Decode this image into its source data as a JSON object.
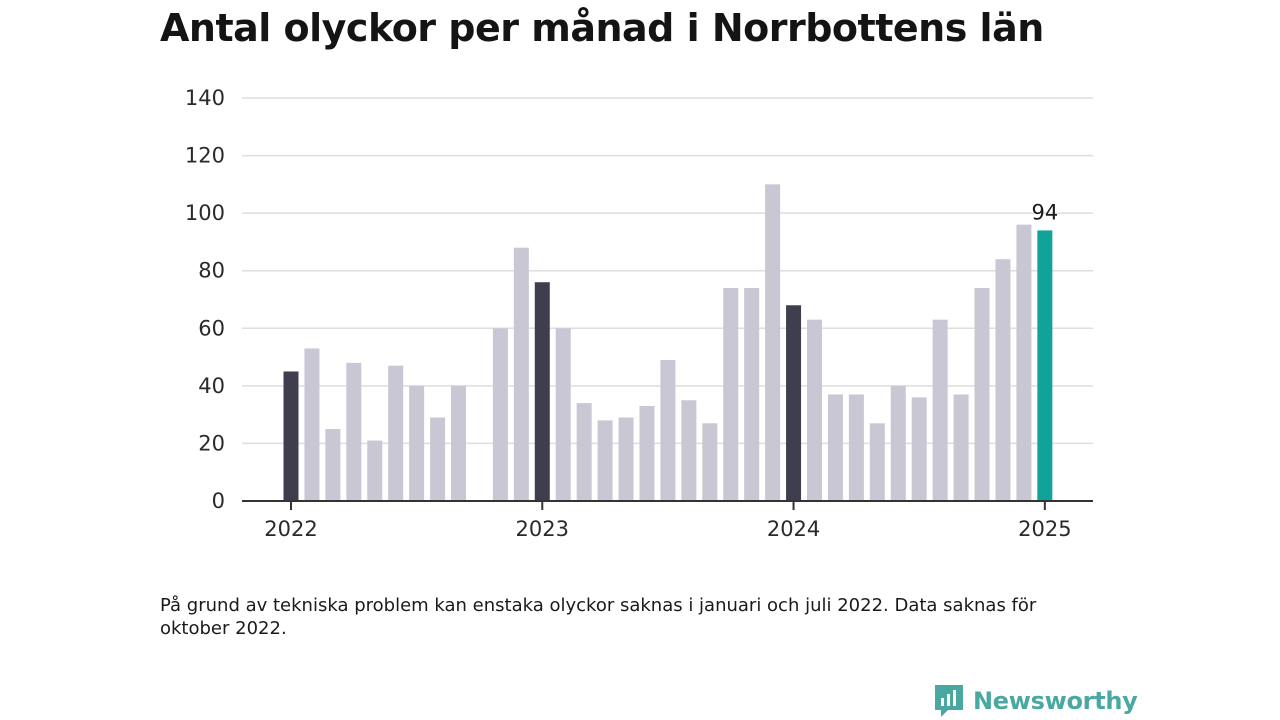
{
  "chart_data": {
    "type": "bar",
    "title": "Antal olyckor per månad i Norrbottens län",
    "ylim": [
      0,
      140
    ],
    "yticks": [
      0,
      20,
      40,
      60,
      80,
      100,
      120,
      140
    ],
    "grid": true,
    "xticks": [
      {
        "label": "2022",
        "month_index": 0
      },
      {
        "label": "2023",
        "month_index": 12
      },
      {
        "label": "2024",
        "month_index": 24
      },
      {
        "label": "2025",
        "month_index": 36
      }
    ],
    "months": [
      "2022-01",
      "2022-02",
      "2022-03",
      "2022-04",
      "2022-05",
      "2022-06",
      "2022-07",
      "2022-08",
      "2022-09",
      "2022-10",
      "2022-11",
      "2022-12",
      "2023-01",
      "2023-02",
      "2023-03",
      "2023-04",
      "2023-05",
      "2023-06",
      "2023-07",
      "2023-08",
      "2023-09",
      "2023-10",
      "2023-11",
      "2023-12",
      "2024-01",
      "2024-02",
      "2024-03",
      "2024-04",
      "2024-05",
      "2024-06",
      "2024-07",
      "2024-08",
      "2024-09",
      "2024-10",
      "2024-11",
      "2024-12",
      "2025-01"
    ],
    "values": [
      45,
      53,
      25,
      48,
      21,
      47,
      40,
      29,
      40,
      null,
      60,
      88,
      76,
      60,
      34,
      28,
      29,
      33,
      49,
      35,
      27,
      74,
      74,
      110,
      68,
      63,
      37,
      37,
      27,
      40,
      36,
      63,
      37,
      74,
      84,
      96,
      94
    ],
    "highlight_label": {
      "month": "2025-01",
      "text": "94"
    },
    "colors": {
      "default": "#c8c7d3",
      "january": "#3f3e4e",
      "latest": "#0fa39a",
      "grid": "#dedede",
      "axis": "#333333"
    }
  },
  "footnote": "På grund av tekniska problem kan enstaka olyckor saknas i januari och juli 2022. Data saknas för oktober 2022.",
  "brand": {
    "name": "Newsworthy",
    "icon": "newsworthy-logo-icon",
    "color": "#4aa8a3"
  }
}
